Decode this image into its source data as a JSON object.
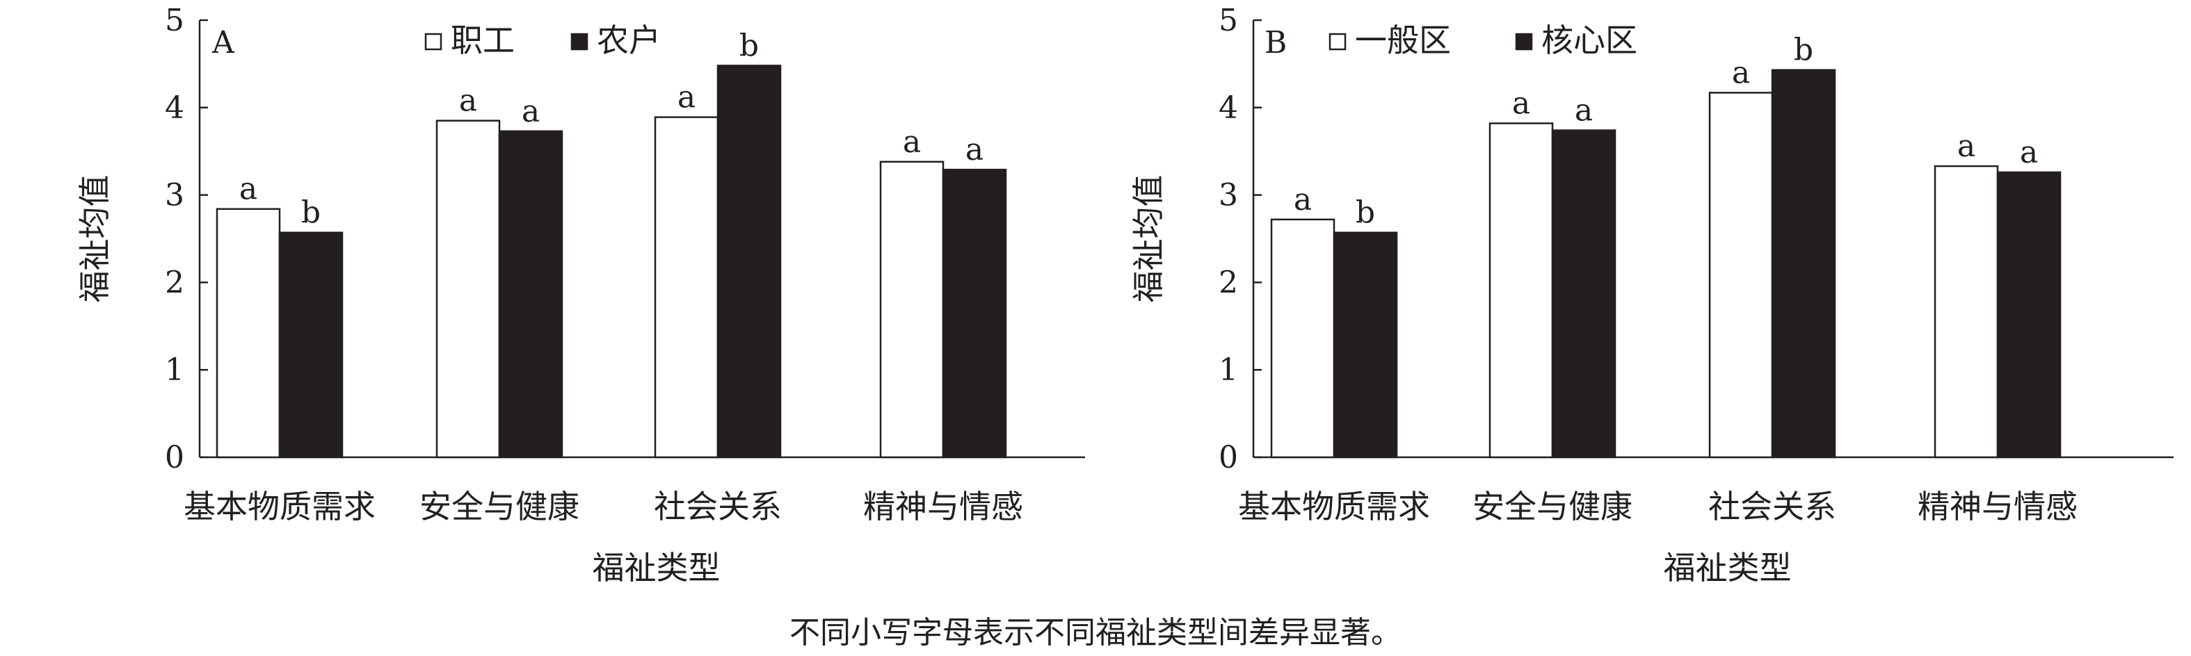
{
  "chart_data": [
    {
      "type": "bar",
      "panel_label": "A",
      "categories": [
        "基本物质需求",
        "安全与健康",
        "社会关系",
        "精神与情感"
      ],
      "series": [
        {
          "name": "职工",
          "color": "#ffffff",
          "values": [
            2.84,
            3.85,
            3.89,
            3.38
          ],
          "letters": [
            "a",
            "a",
            "a",
            "a"
          ]
        },
        {
          "name": "农户",
          "color": "#231f20",
          "values": [
            2.57,
            3.73,
            4.48,
            3.29
          ],
          "letters": [
            "b",
            "a",
            "b",
            "a"
          ]
        }
      ],
      "xlabel": "福祉类型",
      "ylabel": "福祉均值",
      "ylim": [
        0,
        5
      ],
      "yticks": [
        0,
        1,
        2,
        3,
        4,
        5
      ],
      "grid": false,
      "legend_position": "top"
    },
    {
      "type": "bar",
      "panel_label": "B",
      "categories": [
        "基本物质需求",
        "安全与健康",
        "社会关系",
        "精神与情感"
      ],
      "series": [
        {
          "name": "一般区",
          "color": "#ffffff",
          "values": [
            2.72,
            3.82,
            4.17,
            3.33
          ],
          "letters": [
            "a",
            "a",
            "a",
            "a"
          ]
        },
        {
          "name": "核心区",
          "color": "#231f20",
          "values": [
            2.57,
            3.74,
            4.43,
            3.26
          ],
          "letters": [
            "b",
            "a",
            "b",
            "a"
          ]
        }
      ],
      "xlabel": "福祉类型",
      "ylabel": "福祉均值",
      "ylim": [
        0,
        5
      ],
      "yticks": [
        0,
        1,
        2,
        3,
        4,
        5
      ],
      "grid": false,
      "legend_position": "top"
    }
  ],
  "caption": "不同小写字母表示不同福祉类型间差异显著。"
}
